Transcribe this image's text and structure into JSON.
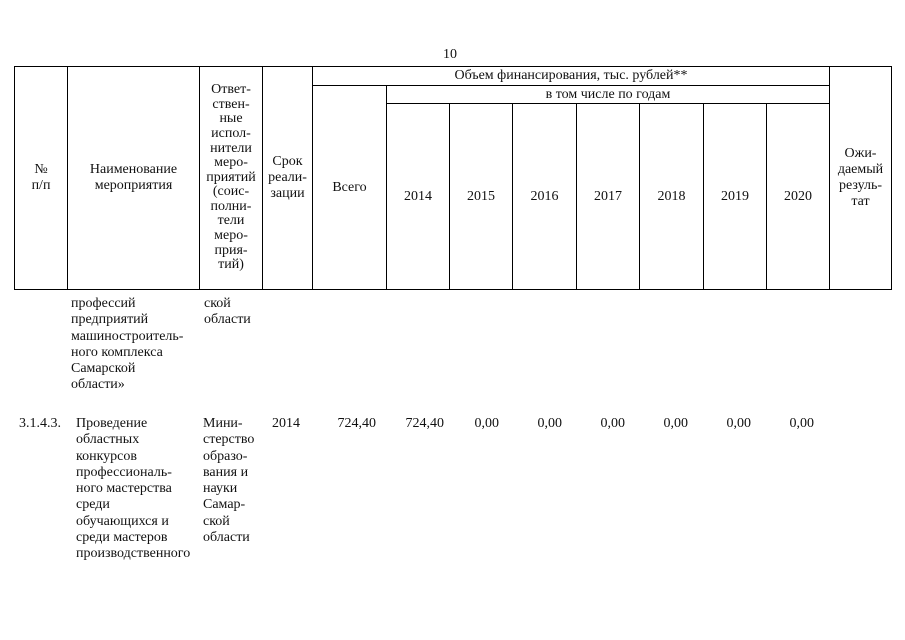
{
  "page_number": "10",
  "header": {
    "num": "№\nп/п",
    "name": "Наименование\nмероприятия",
    "responsible": "Ответ-\nствен-\nные\nиспол-\nнители\nмеро-\nприятий\n(соис-\nполни-\nтели\nмеро-\nприя-\nтий)",
    "term": "Срок\nреали-\nзации",
    "funding": "Объем финансирования, тыс. рублей**",
    "total": "Всего",
    "by_years": "в том числе по годам",
    "years": [
      "2014",
      "2015",
      "2016",
      "2017",
      "2018",
      "2019",
      "2020"
    ],
    "result": "Ожи-\nдаемый\nрезуль-\nтат"
  },
  "rows": [
    {
      "num": "",
      "name": "профессий\nпредприятий\nмашиностроитель-\nного комплекса\nСамарской\nобласти»",
      "responsible": "ской\nобласти"
    },
    {
      "num": "3.1.4.3.",
      "name": "Проведение\nобластных\nконкурсов\nпрофессиональ-\nного мастерства\nсреди\nобучающихся и\nсреди мастеров\nпроизводственного",
      "responsible": "Мини-\nстерство\nобразо-\nвания и\nнауки\nСамар-\nской\nобласти",
      "term": "2014",
      "total": "724,40",
      "years": [
        "724,40",
        "0,00",
        "0,00",
        "0,00",
        "0,00",
        "0,00",
        "0,00"
      ]
    }
  ]
}
